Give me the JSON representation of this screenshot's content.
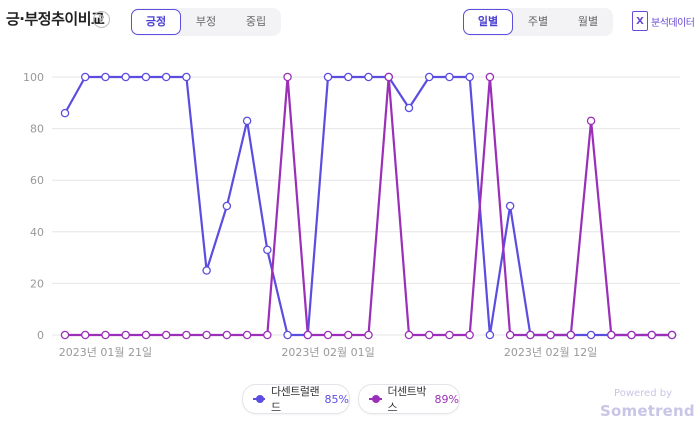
{
  "header": {
    "title": "긍·부정추이비교",
    "help_icon": "question-circle-icon",
    "sentiment_tabs": [
      "긍정",
      "부정",
      "중립"
    ],
    "sentiment_active": 0,
    "period_tabs": [
      "일별",
      "주별",
      "월별"
    ],
    "period_active": 0,
    "excel_label": "분석데이터"
  },
  "colors": {
    "series1": "#5b4de0",
    "series2": "#9b2fb8",
    "grid": "#e6e6ea",
    "tick": "#999999"
  },
  "chart_data": {
    "type": "line",
    "x": [
      "2023-01-19",
      "2023-01-20",
      "2023-01-21",
      "2023-01-22",
      "2023-01-23",
      "2023-01-24",
      "2023-01-25",
      "2023-01-26",
      "2023-01-27",
      "2023-01-28",
      "2023-01-29",
      "2023-01-30",
      "2023-01-31",
      "2023-02-01",
      "2023-02-02",
      "2023-02-03",
      "2023-02-04",
      "2023-02-05",
      "2023-02-06",
      "2023-02-07",
      "2023-02-08",
      "2023-02-09",
      "2023-02-10",
      "2023-02-11",
      "2023-02-12",
      "2023-02-13",
      "2023-02-14",
      "2023-02-15",
      "2023-02-16",
      "2023-02-17",
      "2023-02-18"
    ],
    "x_tick_labels": [
      {
        "index": 2,
        "label": "2023년 01월 21일"
      },
      {
        "index": 13,
        "label": "2023년 02월 01일"
      },
      {
        "index": 24,
        "label": "2023년 02월 12일"
      }
    ],
    "ylim": [
      0,
      100
    ],
    "yticks": [
      0,
      20,
      40,
      60,
      80,
      100
    ],
    "grid": true,
    "series": [
      {
        "name": "다센트럴랜드",
        "percent_label": "85%",
        "values": [
          86,
          100,
          100,
          100,
          100,
          100,
          100,
          25,
          50,
          83,
          33,
          0,
          0,
          100,
          100,
          100,
          100,
          88,
          100,
          100,
          100,
          0,
          50,
          0,
          0,
          0,
          0,
          0,
          0,
          0,
          0
        ]
      },
      {
        "name": "더센트박스",
        "percent_label": "89%",
        "values": [
          0,
          0,
          0,
          0,
          0,
          0,
          0,
          0,
          0,
          0,
          0,
          100,
          0,
          0,
          0,
          0,
          100,
          0,
          0,
          0,
          0,
          100,
          0,
          0,
          0,
          0,
          83,
          0,
          0,
          0,
          0
        ]
      }
    ]
  },
  "branding": {
    "powered_by": "Powered by",
    "brand": "Sometrend"
  }
}
